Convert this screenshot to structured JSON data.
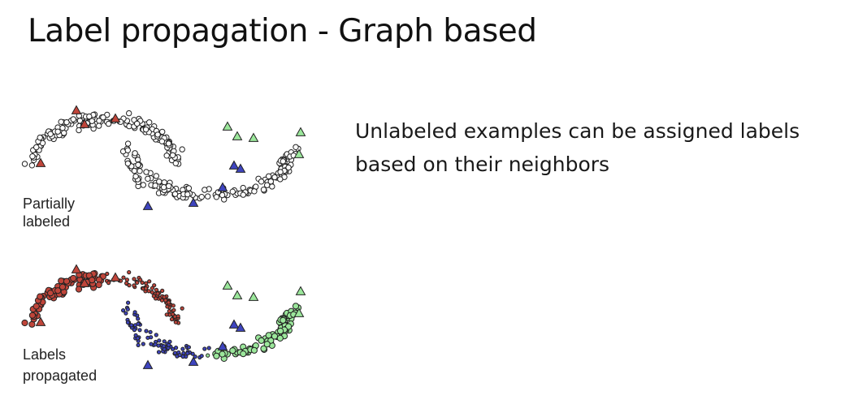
{
  "title": "Label propagation - Graph based",
  "description": "Unlabeled examples can be assigned labels based on their neighbors",
  "panels": {
    "partially_labeled": {
      "label_line1": "Partially",
      "label_line2": "labeled"
    },
    "labels_propagated": {
      "label_line1": "Labels",
      "label_line2": "propagated"
    }
  },
  "colors": {
    "unlabeled_fill": "#ffffff",
    "class_red": "#c0453a",
    "class_green": "#9be79b",
    "class_blue": "#3e44bf",
    "outline": "#222222"
  }
}
